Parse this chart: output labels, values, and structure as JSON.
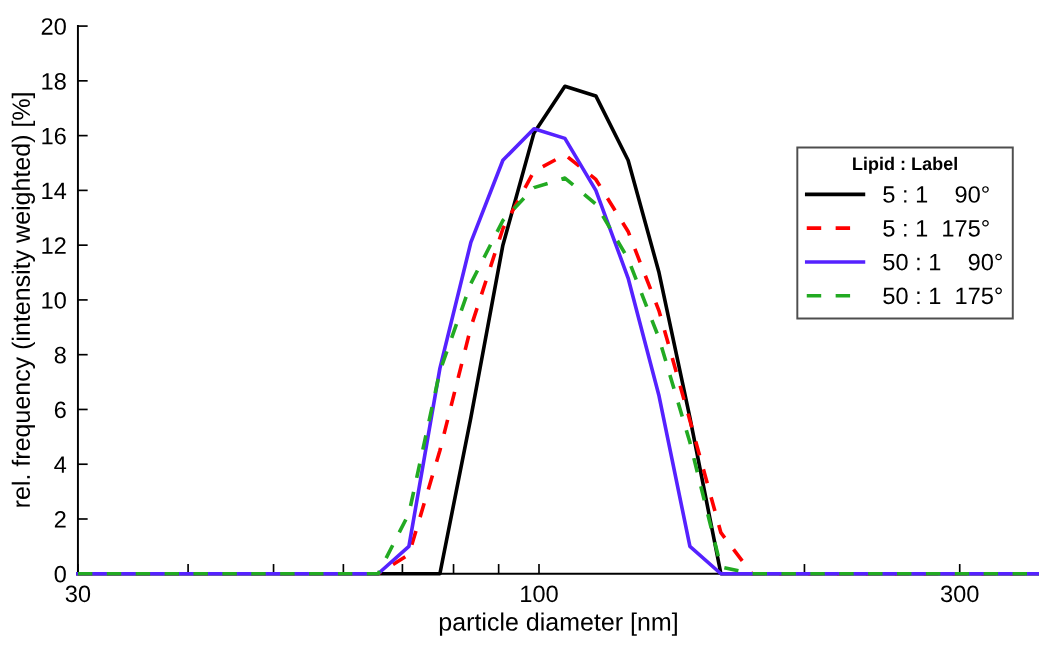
{
  "chart_data": {
    "type": "line",
    "xlabel": "particle diameter [nm]",
    "ylabel": "rel. frequency (intensity weighted) [%]",
    "legend_title": "Lipid : Label",
    "legend": "top right",
    "log": "x",
    "grid": false,
    "marker": "none",
    "x": [
      30,
      65.7,
      71.2,
      77.2,
      83.7,
      91.0,
      98.7,
      107.0,
      116.0,
      126.2,
      136.8,
      148.3,
      160.8,
      174.4,
      369
    ],
    "xlim": [
      30,
      369
    ],
    "xticks": [
      30,
      {
        "value": 40,
        "label": null
      },
      {
        "value": 50,
        "label": null
      },
      {
        "value": 60,
        "label": null
      },
      {
        "value": 70,
        "label": null
      },
      {
        "value": 80,
        "label": null
      },
      {
        "value": 90,
        "label": null
      },
      100,
      {
        "value": 200,
        "label": null
      },
      300
    ],
    "ylim": [
      0,
      20
    ],
    "yticks": [
      0,
      2,
      4,
      6,
      8,
      10,
      12,
      14,
      16,
      18,
      20
    ],
    "series": [
      {
        "name": "5 : 1    90°",
        "color": "#000000",
        "line_style": "solid",
        "values": [
          0,
          0,
          0,
          0,
          5.7,
          12.0,
          16.1,
          17.8,
          17.45,
          15.1,
          11.0,
          5.7,
          0,
          0,
          0
        ]
      },
      {
        "name": "5 : 1  175°",
        "color": "#ff0000",
        "line_style": "dashed",
        "values": [
          0,
          0,
          0.7,
          4.5,
          9.0,
          12.6,
          14.7,
          15.3,
          14.4,
          12.5,
          9.6,
          5.6,
          1.5,
          0,
          0
        ]
      },
      {
        "name": "50 : 1    90°",
        "color": "#5522ff",
        "line_style": "solid",
        "values": [
          0,
          0,
          1.0,
          7.5,
          12.1,
          15.1,
          16.25,
          15.9,
          14.0,
          10.8,
          6.5,
          1.0,
          0,
          0,
          0
        ]
      },
      {
        "name": "50 : 1  175°",
        "color": "#22aa22",
        "line_style": "dashed",
        "values": [
          0,
          0,
          2.2,
          7.4,
          10.6,
          12.9,
          14.1,
          14.45,
          13.5,
          11.5,
          8.6,
          4.8,
          0.25,
          0,
          0
        ]
      }
    ]
  }
}
